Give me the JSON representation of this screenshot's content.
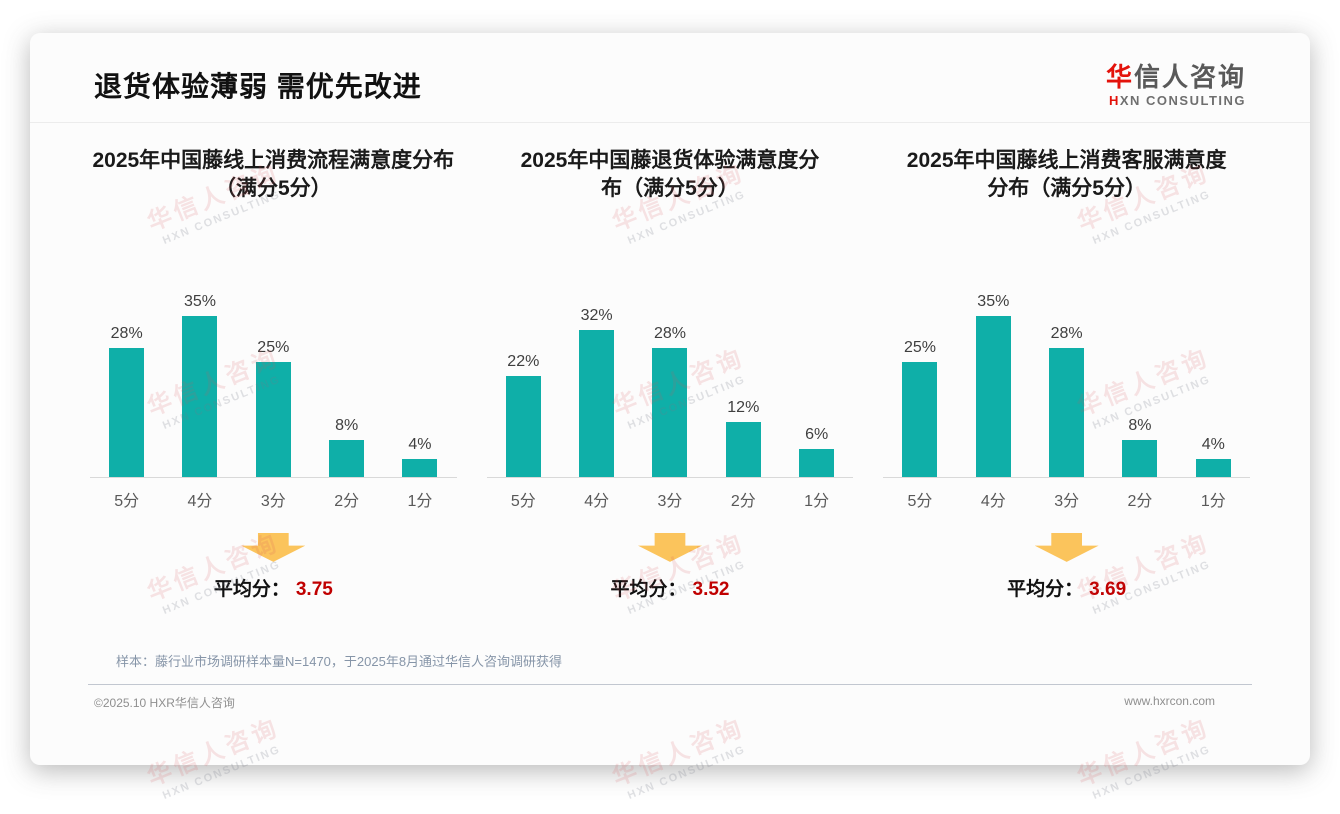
{
  "header": {
    "title": "退货体验薄弱 需优先改进",
    "logo": {
      "zh_accent": "华",
      "zh_rest": "信人咨询",
      "en_accent": "H",
      "en_rest": "XN CONSULTING"
    }
  },
  "chart_data": [
    {
      "type": "bar",
      "title": "2025年中国藤线上消费流程满意度分布（满分5分）",
      "title_line1": "2025年中国藤线上消费流程满意度分布",
      "title_line2": "（满分5分）",
      "categories": [
        "5分",
        "4分",
        "3分",
        "2分",
        "1分"
      ],
      "values": [
        28,
        35,
        25,
        8,
        4
      ],
      "unit": "%",
      "ylim": [
        0,
        40
      ],
      "grid": false,
      "legend": "none",
      "avg_label": "平均分：",
      "avg_value": "3.75"
    },
    {
      "type": "bar",
      "title": "2025年中国藤退货体验满意度分布（满分5分）",
      "title_line1": "2025年中国藤退货体验满意度分",
      "title_line2": "布（满分5分）",
      "categories": [
        "5分",
        "4分",
        "3分",
        "2分",
        "1分"
      ],
      "values": [
        22,
        32,
        28,
        12,
        6
      ],
      "unit": "%",
      "ylim": [
        0,
        40
      ],
      "grid": false,
      "legend": "none",
      "avg_label": "平均分：",
      "avg_value": "3.52"
    },
    {
      "type": "bar",
      "title": "2025年中国藤线上消费客服满意度分布（满分5分）",
      "title_line1": "2025年中国藤线上消费客服满意度",
      "title_line2": "分布（满分5分）",
      "categories": [
        "5分",
        "4分",
        "3分",
        "2分",
        "1分"
      ],
      "values": [
        25,
        35,
        28,
        8,
        4
      ],
      "unit": "%",
      "ylim": [
        0,
        40
      ],
      "grid": false,
      "legend": "none",
      "avg_label": "平均分：",
      "avg_value": "3.69"
    }
  ],
  "note": "样本：藤行业市场调研样本量N=1470，于2025年8月通过华信人咨询调研获得",
  "footer": {
    "copyright": "©2025.10 HXR华信人咨询",
    "website": "www.hxrcon.com"
  },
  "watermark": {
    "line1": "华信人咨询",
    "line2": "HXN CONSULTING"
  },
  "colors": {
    "bar": "#0FAFA8",
    "avg_value": "#C00000",
    "arrow": "#FBC45C",
    "logo_accent": "#E3120B",
    "note_text": "#8695A8"
  }
}
